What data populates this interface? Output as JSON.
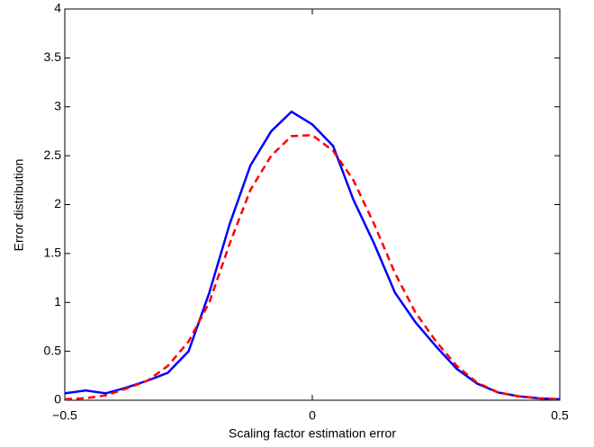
{
  "chart_data": {
    "type": "line",
    "xlabel": "Scaling factor estimation error",
    "ylabel": "Error distribution",
    "x": [
      -0.5,
      -0.458,
      -0.417,
      -0.375,
      -0.333,
      -0.292,
      -0.25,
      -0.208,
      -0.167,
      -0.125,
      -0.083,
      -0.042,
      0,
      0.042,
      0.083,
      0.125,
      0.167,
      0.208,
      0.25,
      0.292,
      0.333,
      0.375,
      0.417,
      0.458,
      0.5
    ],
    "series": [
      {
        "color": "#0000ff",
        "dash": false,
        "values": [
          0.07,
          0.1,
          0.07,
          0.13,
          0.2,
          0.28,
          0.5,
          1.1,
          1.8,
          2.4,
          2.75,
          2.95,
          2.82,
          2.6,
          2.05,
          1.6,
          1.1,
          0.8,
          0.55,
          0.32,
          0.17,
          0.08,
          0.04,
          0.02,
          0.01
        ]
      },
      {
        "color": "#ff0000",
        "dash": true,
        "values": [
          0.01,
          0.02,
          0.05,
          0.12,
          0.2,
          0.35,
          0.6,
          1.0,
          1.6,
          2.15,
          2.5,
          2.7,
          2.71,
          2.55,
          2.25,
          1.8,
          1.3,
          0.9,
          0.6,
          0.35,
          0.18,
          0.08,
          0.04,
          0.02,
          0.01
        ]
      }
    ],
    "xlim": [
      -0.5,
      0.5
    ],
    "xticks": [
      {
        "value": -0.5,
        "label": "−0.5"
      },
      0,
      0.5
    ],
    "ylim": [
      0,
      4
    ],
    "yticks": [
      0,
      0.5,
      1,
      1.5,
      2,
      2.5,
      3,
      3.5,
      4
    ]
  }
}
